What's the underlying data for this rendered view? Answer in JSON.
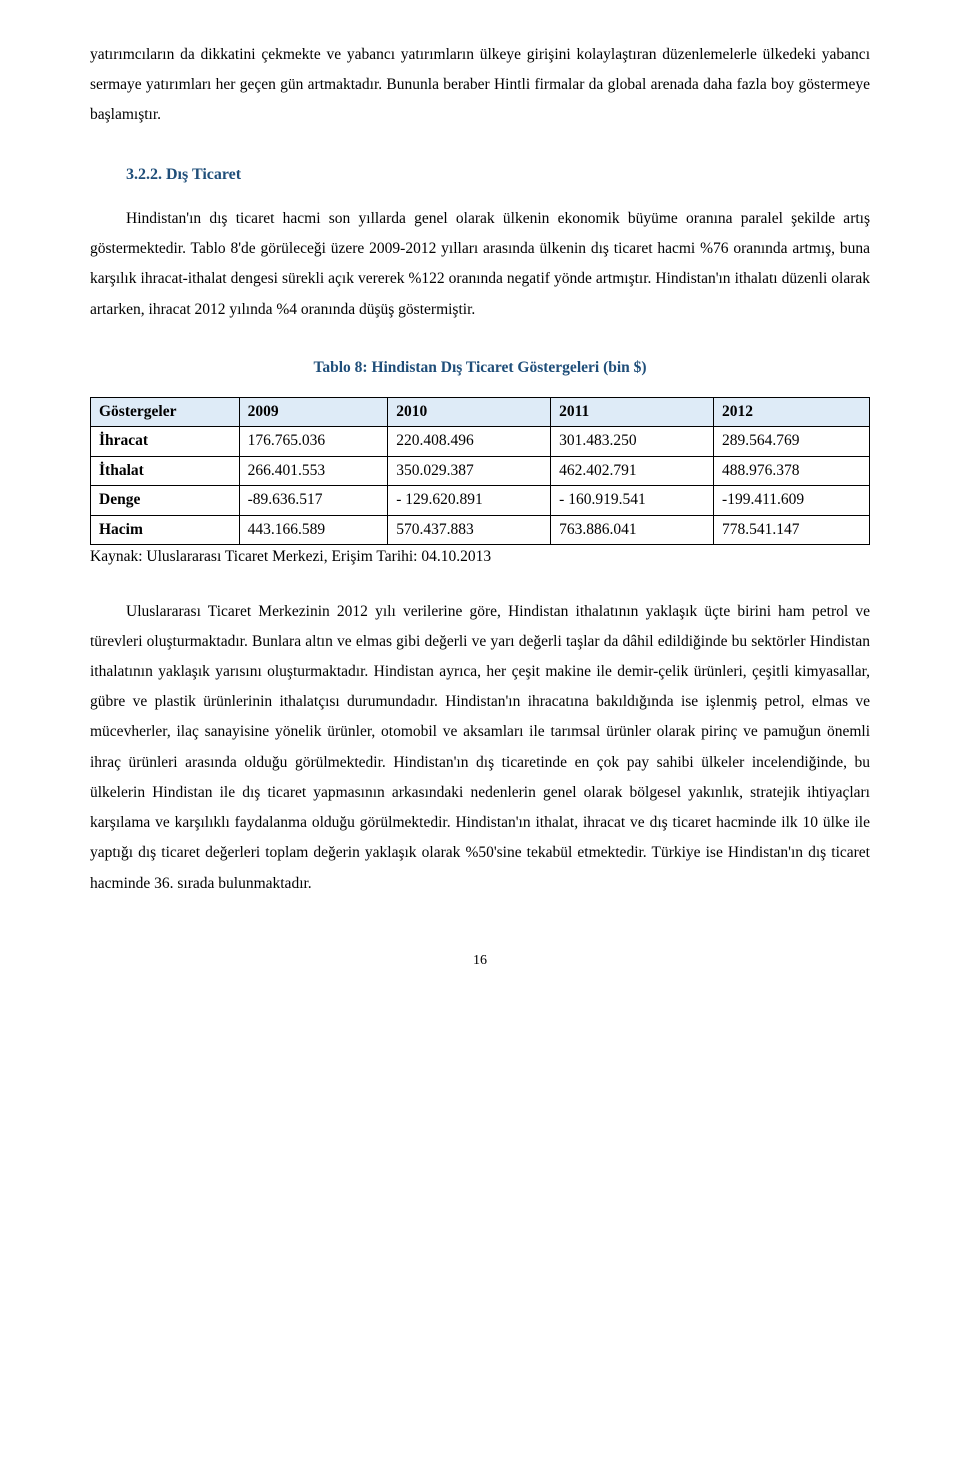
{
  "para1": "yatırımcıların da dikkatini çekmekte ve yabancı yatırımların ülkeye girişini kolaylaştıran düzenlemelerle ülkedeki yabancı sermaye yatırımları her geçen gün artmaktadır. Bununla beraber Hintli firmalar da global arenada daha fazla boy göstermeye başlamıştır.",
  "section_heading": "3.2.2. Dış Ticaret",
  "para2": "Hindistan'ın dış ticaret hacmi son yıllarda genel olarak ülkenin ekonomik büyüme oranına paralel şekilde artış göstermektedir. Tablo 8'de görüleceği üzere 2009-2012 yılları arasında ülkenin dış ticaret hacmi %76 oranında artmış, buna karşılık ihracat-ithalat dengesi sürekli açık vererek %122 oranında negatif yönde artmıştır. Hindistan'ın ithalatı düzenli olarak artarken, ihracat 2012 yılında %4 oranında düşüş göstermiştir.",
  "table": {
    "title": "Tablo 8: Hindistan Dış Ticaret Göstergeleri (bin $)",
    "header_bg": "#deebf7",
    "columns": [
      "Göstergeler",
      "2009",
      "2010",
      "2011",
      "2012"
    ],
    "rows": [
      [
        "İhracat",
        "176.765.036",
        "220.408.496",
        "301.483.250",
        "289.564.769"
      ],
      [
        "İthalat",
        "266.401.553",
        "350.029.387",
        "462.402.791",
        "488.976.378"
      ],
      [
        "Denge",
        "-89.636.517",
        "- 129.620.891",
        "- 160.919.541",
        "-199.411.609"
      ],
      [
        "Hacim",
        "443.166.589",
        "570.437.883",
        "763.886.041",
        "778.541.147"
      ]
    ],
    "source": "Kaynak: Uluslararası Ticaret Merkezi, Erişim Tarihi: 04.10.2013"
  },
  "para3": "Uluslararası Ticaret Merkezinin 2012 yılı verilerine göre, Hindistan ithalatının yaklaşık üçte birini ham petrol ve türevleri oluşturmaktadır. Bunlara altın ve elmas gibi değerli ve yarı değerli taşlar da dâhil edildiğinde bu sektörler Hindistan ithalatının yaklaşık yarısını oluşturmaktadır. Hindistan ayrıca, her çeşit makine ile demir-çelik ürünleri, çeşitli kimyasallar, gübre ve plastik ürünlerinin ithalatçısı durumundadır. Hindistan'ın ihracatına bakıldığında ise işlenmiş petrol, elmas ve mücevherler, ilaç sanayisine yönelik ürünler, otomobil ve aksamları ile tarımsal ürünler olarak pirinç ve pamuğun önemli ihraç ürünleri arasında olduğu görülmektedir. Hindistan'ın dış ticaretinde en çok pay sahibi ülkeler incelendiğinde, bu ülkelerin Hindistan ile dış ticaret yapmasının arkasındaki nedenlerin genel olarak bölgesel yakınlık, stratejik ihtiyaçları karşılama ve karşılıklı faydalanma olduğu görülmektedir. Hindistan'ın ithalat, ihracat ve dış ticaret hacminde ilk 10 ülke ile yaptığı dış ticaret değerleri toplam değerin yaklaşık olarak %50'sine tekabül etmektedir. Türkiye ise Hindistan'ın dış ticaret hacminde 36. sırada bulunmaktadır.",
  "page_number": "16"
}
